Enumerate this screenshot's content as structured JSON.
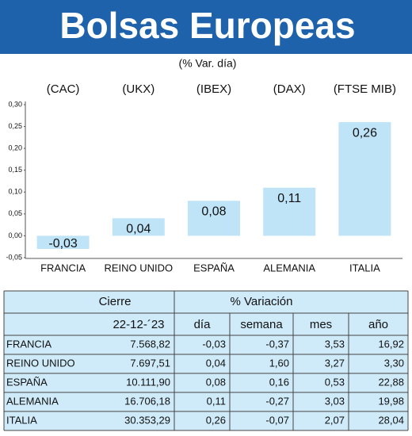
{
  "title": "Bolsas Europeas",
  "chart_data": {
    "type": "bar",
    "subtitle": "(% Var. día)",
    "indices": [
      "(CAC)",
      "(UKX)",
      "(IBEX)",
      "(DAX)",
      "(FTSE MIB)"
    ],
    "categories": [
      "FRANCIA",
      "REINO UNIDO",
      "ESPAÑA",
      "ALEMANIA",
      "ITALIA"
    ],
    "values": [
      -0.03,
      0.04,
      0.08,
      0.11,
      0.26
    ],
    "value_labels": [
      "-0,03",
      "0,04",
      "0,08",
      "0,11",
      "0,26"
    ],
    "color": "#bfe4f8",
    "ylim": [
      -0.05,
      0.3
    ],
    "yticks": [
      {
        "value": -0.05,
        "label": "-0,05"
      },
      {
        "value": 0,
        "label": "0,00"
      },
      {
        "value": 0.05,
        "label": "0,05"
      },
      {
        "value": 0.1,
        "label": "0,10"
      },
      {
        "value": 0.15,
        "label": "0,15"
      },
      {
        "value": 0.2,
        "label": "0,20"
      },
      {
        "value": 0.25,
        "label": "0,25"
      },
      {
        "value": 0.3,
        "label": "0,30"
      }
    ],
    "grid": false
  },
  "table": {
    "group_headers": [
      "Cierre",
      "% Variación"
    ],
    "headers": [
      "22-12-´23",
      "día",
      "semana",
      "mes",
      "año"
    ],
    "rows": [
      [
        "FRANCIA",
        "7.568,82",
        "-0,03",
        "-0,37",
        "3,53",
        "16,92"
      ],
      [
        "REINO UNIDO",
        "7.697,51",
        "0,04",
        "1,60",
        "3,27",
        "3,30"
      ],
      [
        "ESPAÑA",
        "10.111,90",
        "0,08",
        "0,16",
        "0,53",
        "22,88"
      ],
      [
        "ALEMANIA",
        "16.706,18",
        "0,11",
        "-0,27",
        "3,03",
        "19,98"
      ],
      [
        "ITALIA",
        "30.353,29",
        "0,26",
        "-0,07",
        "2,07",
        "28,04"
      ]
    ]
  }
}
